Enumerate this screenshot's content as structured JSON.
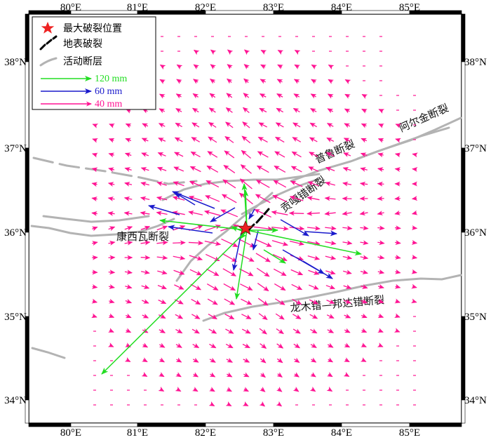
{
  "map": {
    "lon_range": [
      79.55,
      85.75
    ],
    "lat_range": [
      33.75,
      38.75
    ],
    "lon_ticks": [
      "80°E",
      "81°E",
      "82°E",
      "83°E",
      "84°E",
      "85°E"
    ],
    "lat_ticks": [
      "34°N",
      "35°N",
      "36°N",
      "37°N",
      "38°N"
    ]
  },
  "legend": {
    "max_rupture": "最大破裂位置",
    "surface_rupture": "地表破裂",
    "active_fault": "活动断层",
    "scale_120": "120 mm",
    "scale_60": "60 mm",
    "scale_40": "40 mm"
  },
  "fault_labels": {
    "pulu": "普鲁断裂",
    "altyn": "阿尔金断裂",
    "gongga": "贡嘎错断裂",
    "kangxiwa": "康西瓦断裂",
    "longmu": "龙木错—邦达错断裂"
  },
  "colors": {
    "green": "#22dd22",
    "blue": "#1a1acc",
    "magenta": "#ff1493",
    "fault": "#b3b3b3",
    "star": "#ee2222"
  },
  "epicenter": {
    "lon": 82.58,
    "lat": 36.05
  }
}
